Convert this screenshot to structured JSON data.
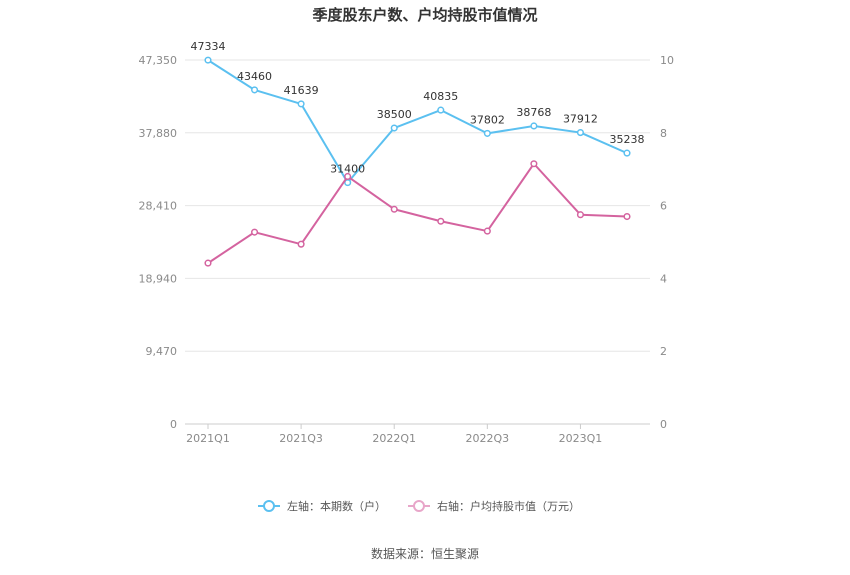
{
  "chart_data": {
    "type": "line",
    "title": "季度股东户数、户均持股市值情况",
    "categories": [
      "2021Q1",
      "2021Q2",
      "2021Q3",
      "2021Q4",
      "2022Q1",
      "2022Q2",
      "2022Q3",
      "2022Q4",
      "2023Q1",
      "2023Q2"
    ],
    "x_tick_labels": [
      "2021Q1",
      "2021Q3",
      "2022Q1",
      "2022Q3",
      "2023Q1"
    ],
    "left_axis": {
      "ticks": [
        "0",
        "9,470",
        "18,940",
        "28,410",
        "37,880",
        "47,350"
      ],
      "ylim": [
        0,
        47350
      ]
    },
    "right_axis": {
      "ticks": [
        "0",
        "2",
        "4",
        "6",
        "8",
        "10"
      ],
      "ylim": [
        0,
        10
      ]
    },
    "series": [
      {
        "name": "左轴：本期数（户）",
        "axis": "left",
        "color": "#5bc0f0",
        "values": [
          47334,
          43460,
          41639,
          31400,
          38500,
          40835,
          37802,
          38768,
          37912,
          35238
        ],
        "labels": [
          "47334",
          "43460",
          "41639",
          "31400",
          "38500",
          "40835",
          "37802",
          "38768",
          "37912",
          "35238"
        ]
      },
      {
        "name": "右轴：户均持股市值（万元）",
        "axis": "right",
        "color": "#d4639f",
        "values": [
          4.42,
          5.27,
          4.94,
          6.8,
          5.9,
          5.57,
          5.3,
          7.15,
          5.75,
          5.7
        ]
      }
    ],
    "grid": true,
    "legend_position": "bottom-center"
  },
  "source_text": "数据来源：恒生聚源"
}
